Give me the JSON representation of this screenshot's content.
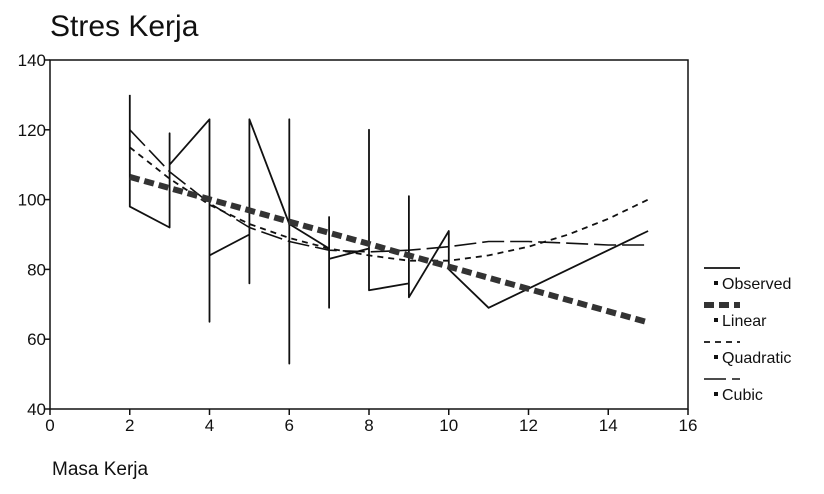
{
  "chart_data": {
    "type": "line",
    "title": "Stres Kerja",
    "xlabel": "Masa Kerja",
    "ylabel": "",
    "xlim": [
      0,
      16
    ],
    "ylim": [
      40,
      140
    ],
    "xticks": [
      0,
      2,
      4,
      6,
      8,
      10,
      12,
      14,
      16
    ],
    "yticks": [
      40,
      60,
      80,
      100,
      120,
      140
    ],
    "grid": false,
    "legend_position": "right",
    "series": [
      {
        "name": "Observed",
        "style": "solid-thin",
        "color": "#111111",
        "points": [
          [
            2,
            130
          ],
          [
            2,
            98
          ],
          [
            3,
            92
          ],
          [
            3,
            119
          ],
          [
            3,
            110
          ],
          [
            4,
            123
          ],
          [
            4,
            65
          ],
          [
            4,
            84
          ],
          [
            5,
            90
          ],
          [
            5,
            123
          ],
          [
            5,
            76
          ],
          [
            5,
            123
          ],
          [
            6,
            93
          ],
          [
            6,
            123
          ],
          [
            6,
            53
          ],
          [
            6,
            93
          ],
          [
            7,
            86
          ],
          [
            7,
            69
          ],
          [
            7,
            95
          ],
          [
            7,
            83
          ],
          [
            8,
            86
          ],
          [
            8,
            120
          ],
          [
            8,
            74
          ],
          [
            9,
            76
          ],
          [
            9,
            101
          ],
          [
            9,
            72
          ],
          [
            10,
            91
          ],
          [
            10,
            80
          ],
          [
            11,
            69
          ],
          [
            15,
            91
          ]
        ]
      },
      {
        "name": "Linear",
        "style": "thick-dashed",
        "color": "#333333",
        "x": [
          2,
          3,
          4,
          5,
          6,
          7,
          8,
          9,
          10,
          11,
          12,
          13,
          14,
          15
        ],
        "values": [
          106.5,
          103.3,
          100.1,
          96.9,
          93.7,
          90.5,
          87.3,
          84.0,
          80.8,
          77.6,
          74.4,
          71.2,
          68.0,
          64.8
        ]
      },
      {
        "name": "Quadratic",
        "style": "dashed",
        "color": "#111111",
        "x": [
          2,
          3,
          4,
          5,
          6,
          7,
          8,
          9,
          10,
          11,
          12,
          13,
          14,
          15
        ],
        "values": [
          115,
          106,
          98.5,
          93,
          89,
          86,
          84,
          82.5,
          82.5,
          84,
          86.5,
          90,
          94.5,
          100
        ]
      },
      {
        "name": "Cubic",
        "style": "long-dash",
        "color": "#111111",
        "x": [
          2,
          3,
          4,
          5,
          6,
          7,
          8,
          9,
          10,
          11,
          12,
          13,
          14,
          15
        ],
        "values": [
          120,
          108,
          99,
          92,
          88,
          85.5,
          85,
          85.5,
          86.5,
          88,
          88,
          87.5,
          87,
          87
        ]
      }
    ]
  }
}
